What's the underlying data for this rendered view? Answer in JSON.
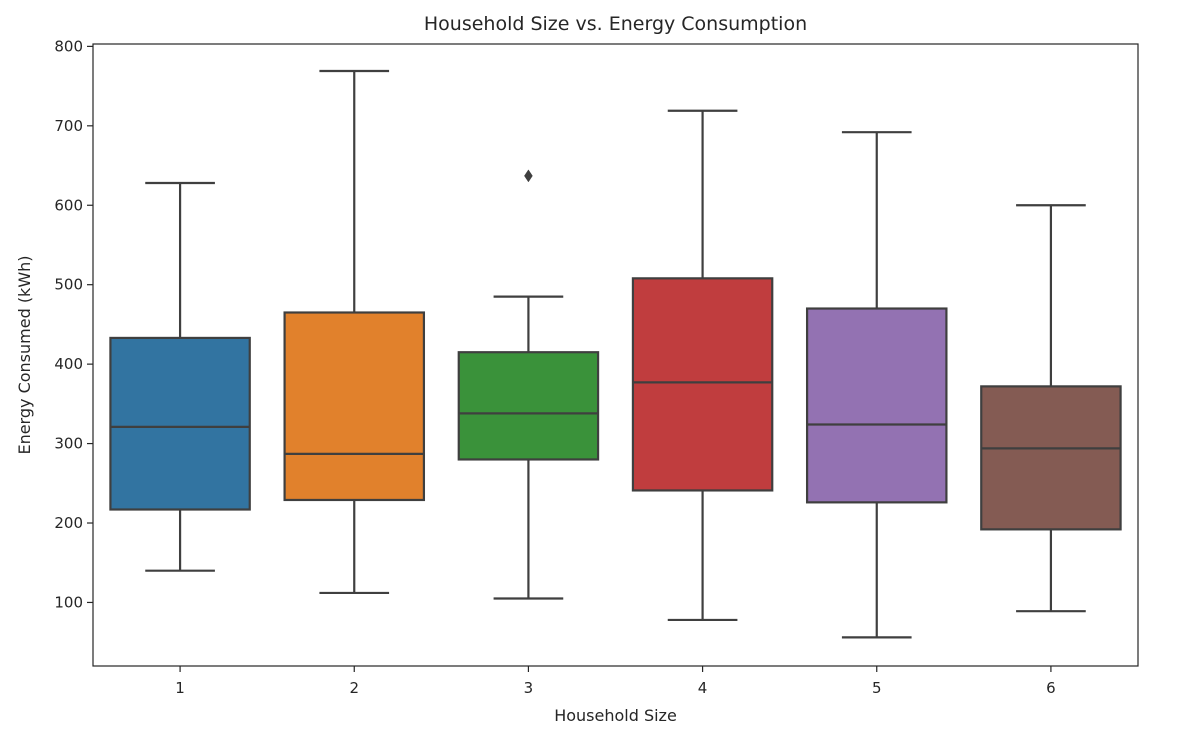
{
  "chart_data": {
    "type": "box",
    "title": "Household Size vs. Energy Consumption",
    "xlabel": "Household Size",
    "ylabel": "Energy Consumed (kWh)",
    "categories": [
      "1",
      "2",
      "3",
      "4",
      "5",
      "6"
    ],
    "ylim": [
      20,
      803
    ],
    "yticks": [
      100,
      200,
      300,
      400,
      500,
      600,
      700,
      800
    ],
    "grid": false,
    "boxes": [
      {
        "category": "1",
        "whisker_low": 140,
        "q1": 217,
        "median": 321,
        "q3": 433,
        "whisker_high": 628,
        "outliers": [],
        "color": "#3274a1"
      },
      {
        "category": "2",
        "whisker_low": 112,
        "q1": 229,
        "median": 287,
        "q3": 465,
        "whisker_high": 769,
        "outliers": [],
        "color": "#e1812c"
      },
      {
        "category": "3",
        "whisker_low": 105,
        "q1": 280,
        "median": 338,
        "q3": 415,
        "whisker_high": 485,
        "outliers": [
          637
        ],
        "color": "#3a923a"
      },
      {
        "category": "4",
        "whisker_low": 78,
        "q1": 241,
        "median": 377,
        "q3": 508,
        "whisker_high": 719,
        "outliers": [],
        "color": "#c03d3e"
      },
      {
        "category": "5",
        "whisker_low": 56,
        "q1": 226,
        "median": 324,
        "q3": 470,
        "whisker_high": 692,
        "outliers": [],
        "color": "#9372b2"
      },
      {
        "category": "6",
        "whisker_low": 89,
        "q1": 192,
        "median": 294,
        "q3": 372,
        "whisker_high": 600,
        "outliers": [],
        "color": "#845b53"
      }
    ]
  }
}
